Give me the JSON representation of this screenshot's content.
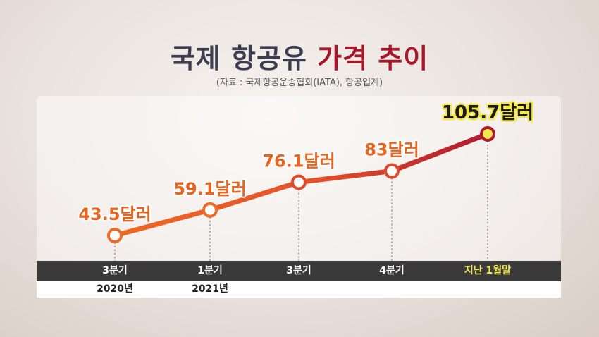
{
  "title": {
    "part1": "국제 항공유",
    "part2": "가격 추이"
  },
  "source": "(자료 : 국제항공운송협회(IATA), 항공업계)",
  "chart_data": {
    "type": "line",
    "title": "국제 항공유 가격 추이",
    "categories": [
      "3분기",
      "1분기",
      "3분기",
      "4분기",
      "지난 1월말"
    ],
    "year_labels": [
      "2020년",
      "2021년",
      "",
      "",
      ""
    ],
    "values": [
      43.5,
      59.1,
      76.1,
      83,
      105.7
    ],
    "data_labels": [
      "43.5달러",
      "59.1달러",
      "76.1달러",
      "83달러",
      "105.7달러"
    ],
    "grid": false,
    "colors": {
      "start": "#ef6a24",
      "end": "#b0192f",
      "highlight_fill": "#f5e84a"
    }
  }
}
